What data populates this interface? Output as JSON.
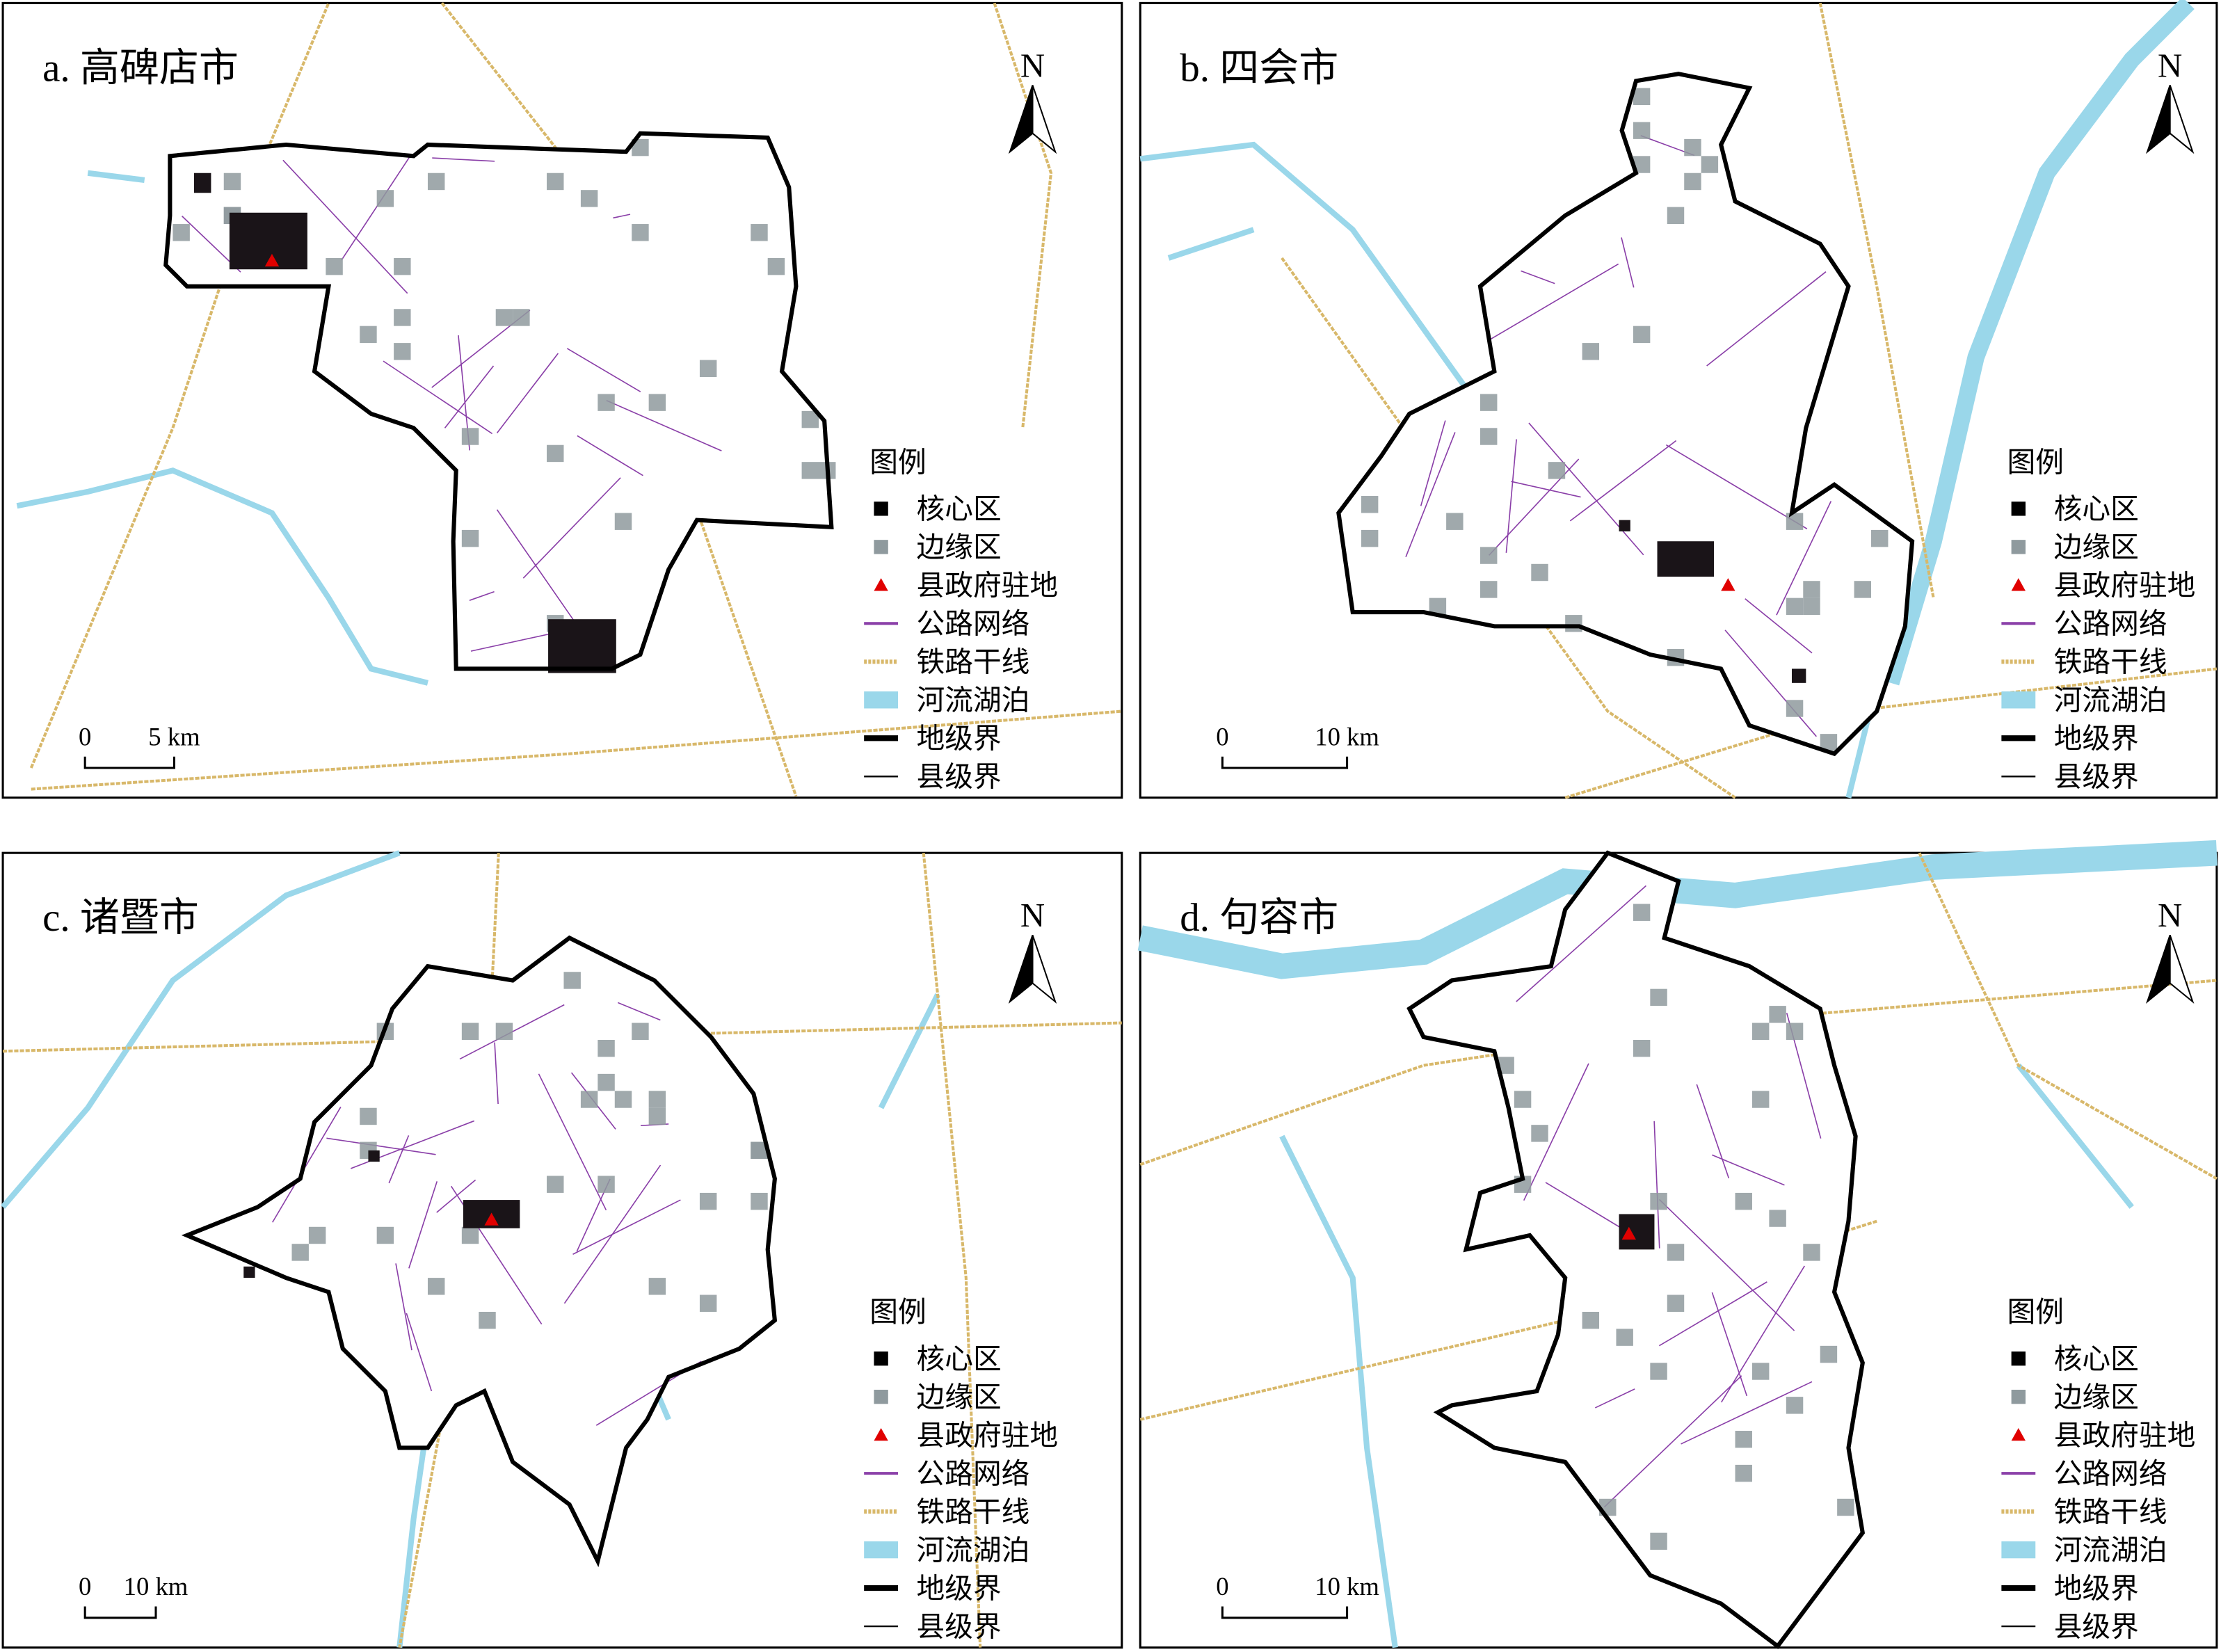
{
  "panels": [
    {
      "title": "a. 高碑店市",
      "north": "N",
      "scale": [
        "0",
        "5 km"
      ],
      "legend": {
        "title": "图例",
        "items": [
          "核心区",
          "边缘区",
          "县政府驻地",
          "公路网络",
          "铁路干线",
          "河流湖泊",
          "地级界",
          "县级界"
        ]
      }
    },
    {
      "title": "b. 四会市",
      "north": "N",
      "scale": [
        "0",
        "10 km"
      ],
      "legend": {
        "title": "图例",
        "items": [
          "核心区",
          "边缘区",
          "县政府驻地",
          "公路网络",
          "铁路干线",
          "河流湖泊",
          "地级界",
          "县级界"
        ]
      }
    },
    {
      "title": "c. 诸暨市",
      "north": "N",
      "scale": [
        "0",
        "10 km"
      ],
      "legend": {
        "title": "图例",
        "items": [
          "核心区",
          "边缘区",
          "县政府驻地",
          "公路网络",
          "铁路干线",
          "河流湖泊",
          "地级界",
          "县级界"
        ]
      }
    },
    {
      "title": "d. 句容市",
      "north": "N",
      "scale": [
        "0",
        "10 km"
      ],
      "legend": {
        "title": "图例",
        "items": [
          "核心区",
          "边缘区",
          "县政府驻地",
          "公路网络",
          "铁路干线",
          "河流湖泊",
          "地级界",
          "县级界"
        ]
      }
    }
  ]
}
